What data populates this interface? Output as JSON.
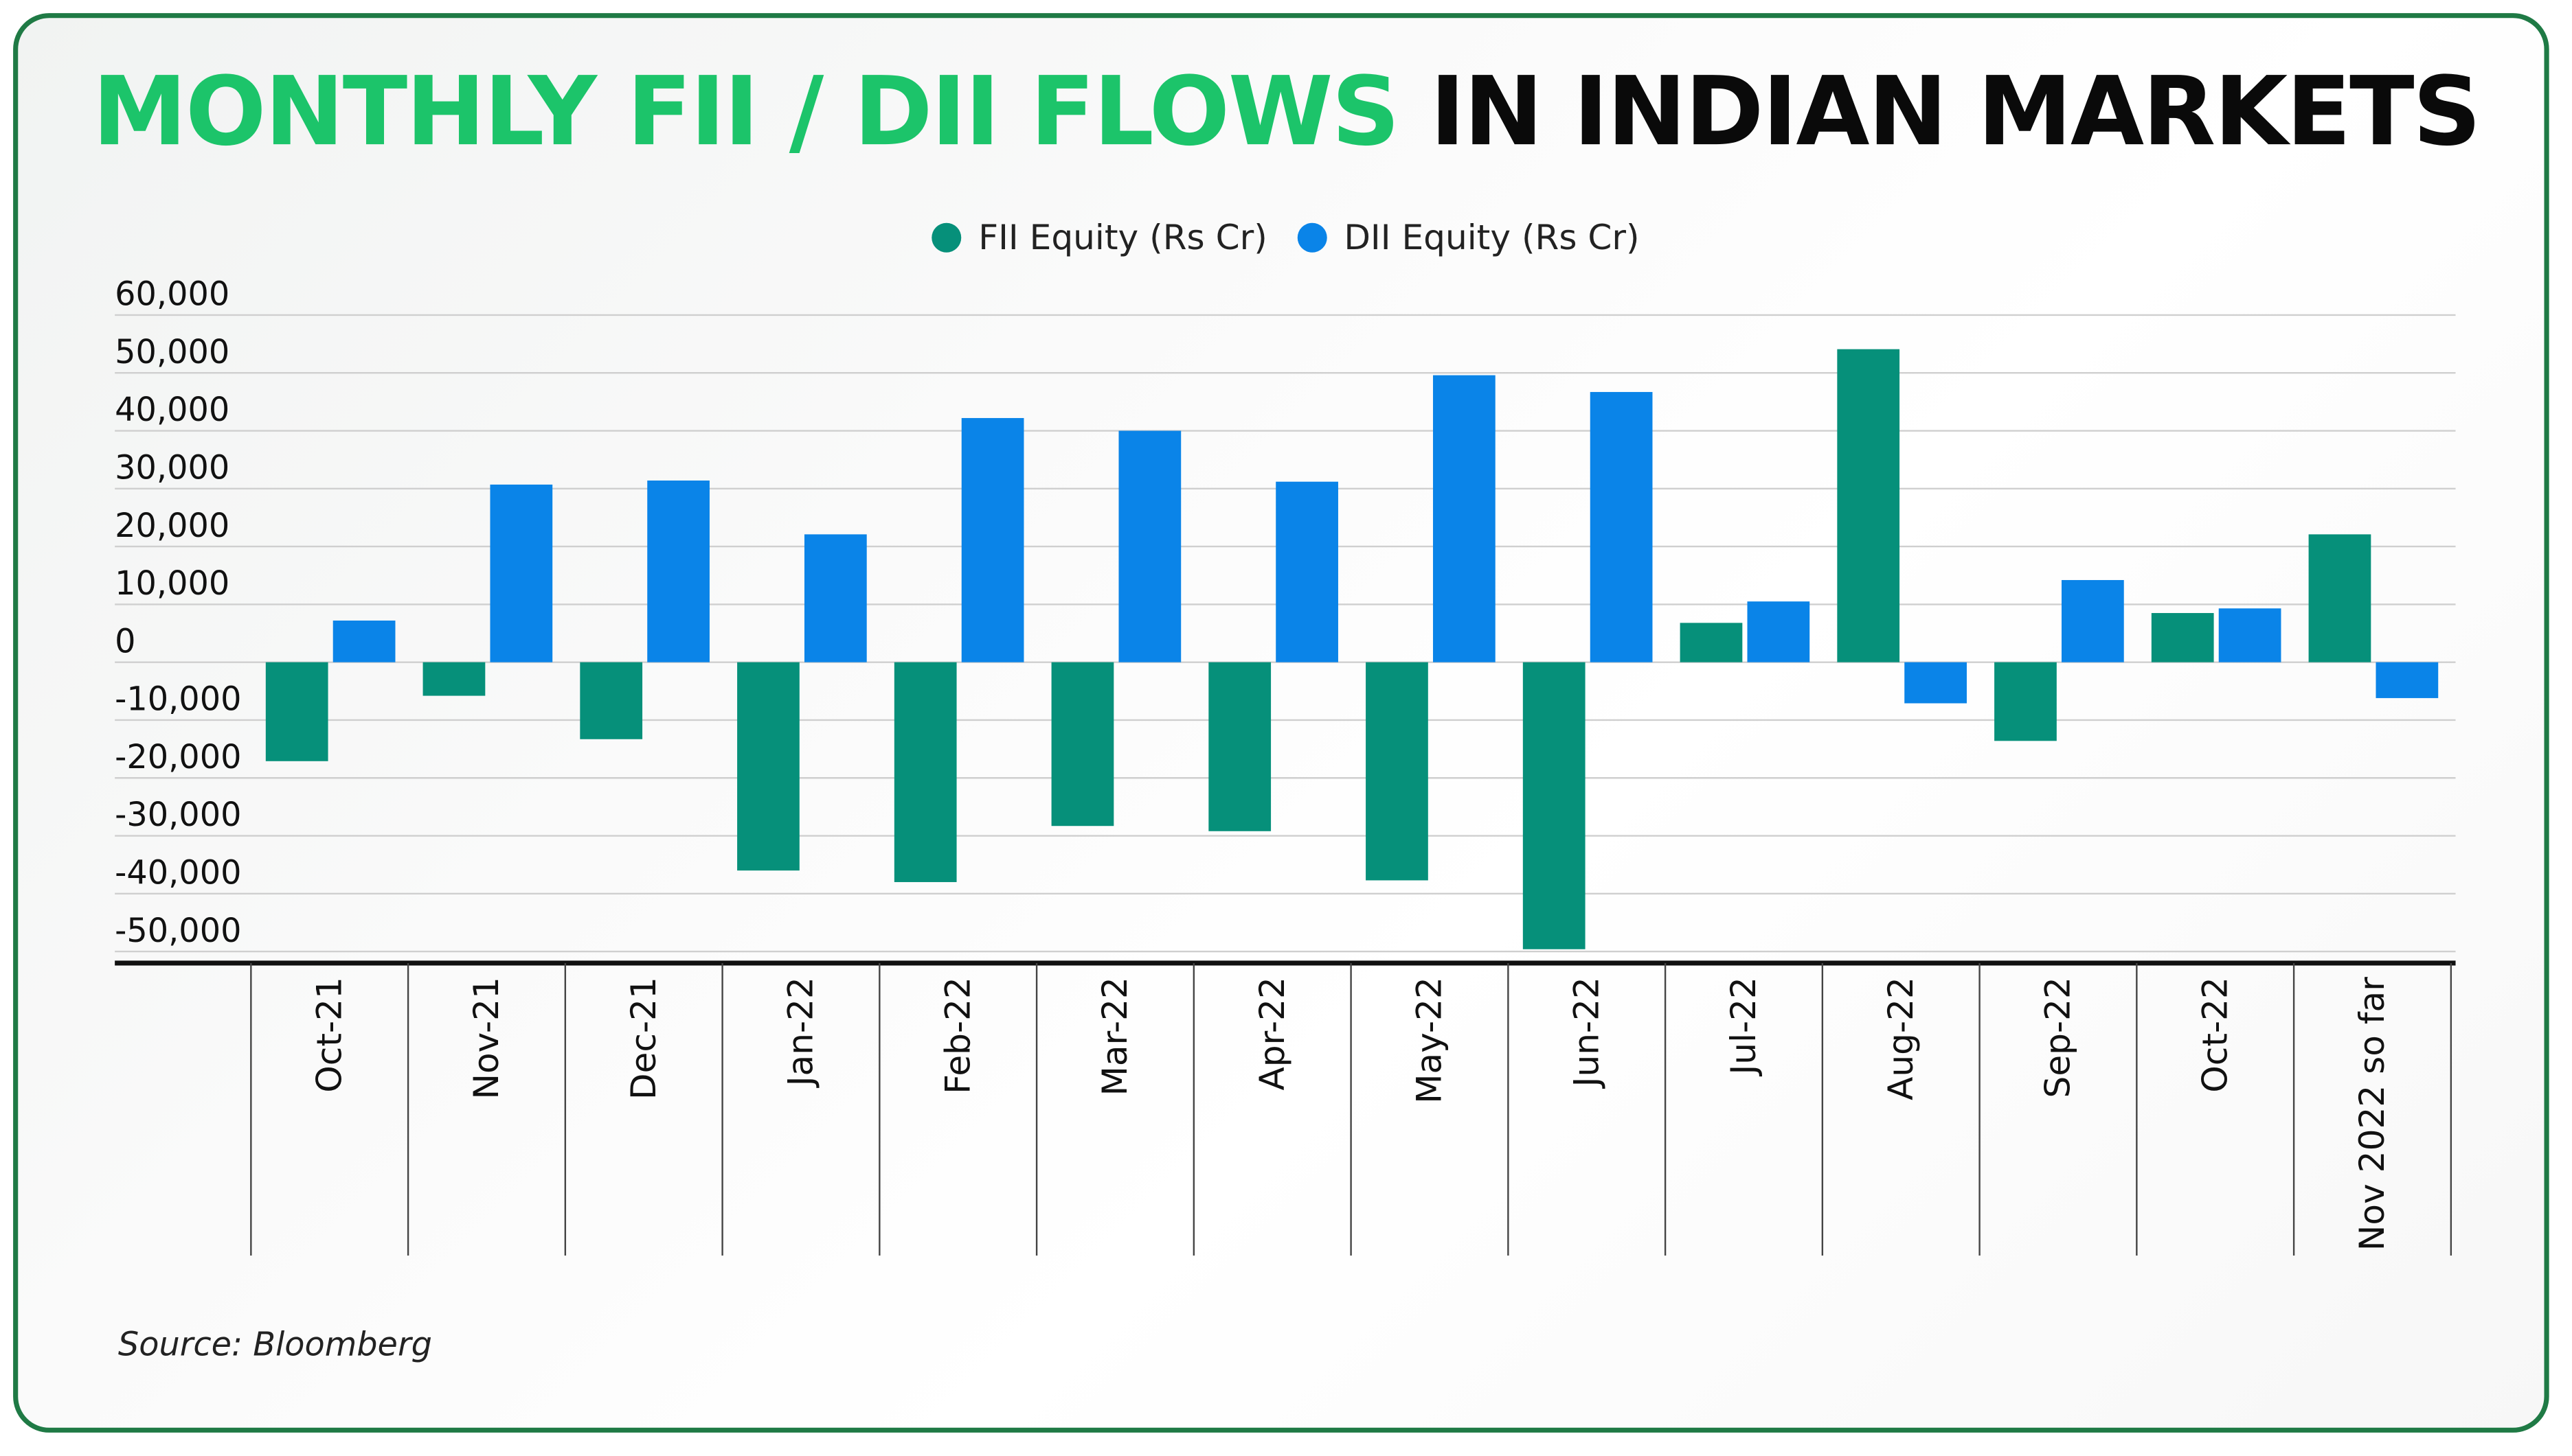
{
  "title": {
    "highlight": "MONTHLY FII / DII FLOWS",
    "rest": "IN INDIAN MARKETS"
  },
  "source": "Source: Bloomberg",
  "colors": {
    "fii": "#06907a",
    "dii": "#0a84e8",
    "title_green": "#1cc46a",
    "frame": "#1f7a45"
  },
  "chart_data": {
    "type": "bar",
    "title": "MONTHLY FII / DII FLOWS IN INDIAN MARKETS",
    "categories": [
      "Oct-21",
      "Nov-21",
      "Dec-21",
      "Jan-22",
      "Feb-22",
      "Mar-22",
      "Apr-22",
      "May-22",
      "Jun-22",
      "Jul-22",
      "Aug-22",
      "Sep-22",
      "Oct-22",
      "Nov 2022 so far"
    ],
    "series": [
      {
        "name": "FII Equity (Rs Cr)",
        "values": [
          -17100,
          -5800,
          -13300,
          -36000,
          -38000,
          -28300,
          -29200,
          -37700,
          -49600,
          6800,
          54100,
          -13600,
          8500,
          22100
        ]
      },
      {
        "name": "DII Equity (Rs Cr)",
        "values": [
          7200,
          30700,
          31400,
          22100,
          42200,
          40000,
          31200,
          49600,
          46700,
          10500,
          -7100,
          14200,
          9300,
          -6200
        ]
      }
    ],
    "yticks": [
      "60,000",
      "50,000",
      "40,000",
      "30,000",
      "20,000",
      "10,000",
      "0",
      "-10,000",
      "-20,000",
      "-30,000",
      "-40,000",
      "-50,000"
    ],
    "ylim": [
      -52000,
      60000
    ],
    "grid": true,
    "legend": "top-center",
    "xlabel": "",
    "ylabel": ""
  }
}
